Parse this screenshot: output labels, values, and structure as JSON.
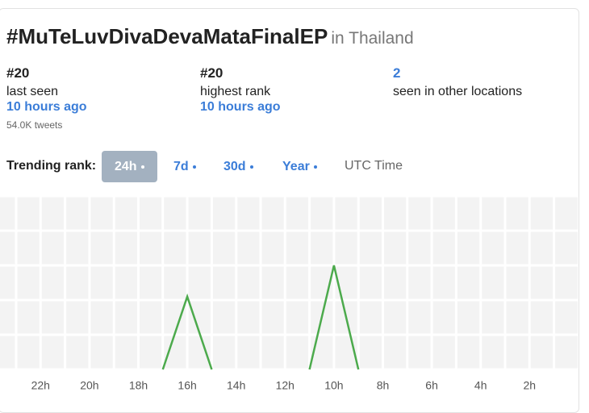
{
  "header": {
    "title": "#MuTeLuvDivaDevaMataFinalEP",
    "location": "in Thailand"
  },
  "stats": [
    {
      "value": "#20",
      "label": "last seen",
      "time": "10 hours ago",
      "note": "54.0K tweets"
    },
    {
      "value": "#20",
      "label": "highest rank",
      "time": "10 hours ago"
    },
    {
      "value": "2",
      "label": "seen in other locations"
    }
  ],
  "tabs": {
    "label": "Trending rank:",
    "options": [
      "24h",
      "7d",
      "30d",
      "Year"
    ],
    "selected": 0,
    "timezone": "UTC Time"
  },
  "chart_data": {
    "type": "line",
    "categories": [
      null,
      "22h",
      null,
      "20h",
      null,
      "18h",
      null,
      "16h",
      null,
      "14h",
      null,
      "12h",
      null,
      "10h",
      null,
      "8h",
      null,
      "6h",
      null,
      "4h",
      null,
      "2h",
      null,
      null
    ],
    "values": [
      null,
      null,
      null,
      null,
      null,
      null,
      50,
      29,
      50,
      null,
      null,
      null,
      50,
      20,
      50,
      null,
      null,
      null,
      null,
      null,
      null,
      null,
      null,
      null
    ],
    "color": "#4caa4c",
    "ylim": [
      50,
      0
    ],
    "yticks": [
      0,
      10,
      20,
      30,
      40,
      50
    ],
    "grid": true
  }
}
